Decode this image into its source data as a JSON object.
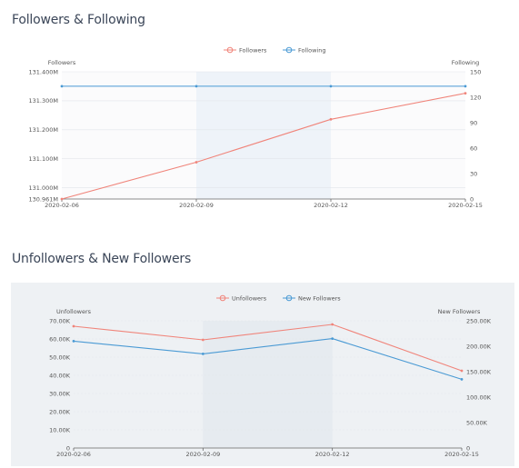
{
  "sections": {
    "followers_title": "Followers & Following",
    "unfollowers_title": "Unfollowers & New Followers"
  },
  "chart_data": [
    {
      "type": "line",
      "id": "followers-following",
      "x": [
        "2020-02-06",
        "2020-02-09",
        "2020-02-12",
        "2020-02-15"
      ],
      "series": [
        {
          "name": "Followers",
          "axis": "left",
          "color": "#f0847a",
          "values": [
            130.961,
            131.088,
            131.236,
            131.326
          ]
        },
        {
          "name": "Following",
          "axis": "right",
          "color": "#4a9ad4",
          "values": [
            133,
            133,
            133,
            133
          ]
        }
      ],
      "left_axis": {
        "label": "Followers",
        "min": 130.961,
        "max": 131.4,
        "ticks": [
          {
            "v": 131.4,
            "label": "131.400M"
          },
          {
            "v": 131.3,
            "label": "131.300M"
          },
          {
            "v": 131.2,
            "label": "131.200M"
          },
          {
            "v": 131.1,
            "label": "131.100M"
          },
          {
            "v": 131.0,
            "label": "131.000M"
          },
          {
            "v": 130.961,
            "label": "130.961M"
          }
        ]
      },
      "right_axis": {
        "label": "Following",
        "min": 0,
        "max": 150,
        "ticks": [
          {
            "v": 150,
            "label": "150"
          },
          {
            "v": 120,
            "label": "120"
          },
          {
            "v": 90,
            "label": "90"
          },
          {
            "v": 60,
            "label": "60"
          },
          {
            "v": 30,
            "label": "30"
          },
          {
            "v": 0,
            "label": "0"
          }
        ]
      },
      "shaded_x_range": [
        "2020-02-09",
        "2020-02-12"
      ],
      "legend_position": "top-center"
    },
    {
      "type": "line",
      "id": "unfollowers-new-followers",
      "x": [
        "2020-02-06",
        "2020-02-09",
        "2020-02-12",
        "2020-02-15"
      ],
      "series": [
        {
          "name": "Unfollowers",
          "axis": "left",
          "color": "#f0847a",
          "values": [
            67000,
            59500,
            68000,
            42500
          ]
        },
        {
          "name": "New Followers",
          "axis": "right",
          "color": "#4a9ad4",
          "values": [
            210000,
            185000,
            215000,
            135000
          ]
        }
      ],
      "left_axis": {
        "label": "Unfollowers",
        "min": 0,
        "max": 70000,
        "ticks": [
          {
            "v": 70000,
            "label": "70.00K"
          },
          {
            "v": 60000,
            "label": "60.00K"
          },
          {
            "v": 50000,
            "label": "50.00K"
          },
          {
            "v": 40000,
            "label": "40.00K"
          },
          {
            "v": 30000,
            "label": "30.00K"
          },
          {
            "v": 20000,
            "label": "20.00K"
          },
          {
            "v": 10000,
            "label": "10.00K"
          },
          {
            "v": 0,
            "label": "0"
          }
        ]
      },
      "right_axis": {
        "label": "New Followers",
        "min": 0,
        "max": 250000,
        "ticks": [
          {
            "v": 250000,
            "label": "250.00K"
          },
          {
            "v": 200000,
            "label": "200.00K"
          },
          {
            "v": 150000,
            "label": "150.00K"
          },
          {
            "v": 100000,
            "label": "100.00K"
          },
          {
            "v": 50000,
            "label": "50.00K"
          },
          {
            "v": 0,
            "label": "0"
          }
        ]
      },
      "shaded_x_range": [
        "2020-02-09",
        "2020-02-12"
      ],
      "legend_position": "top-center"
    }
  ]
}
